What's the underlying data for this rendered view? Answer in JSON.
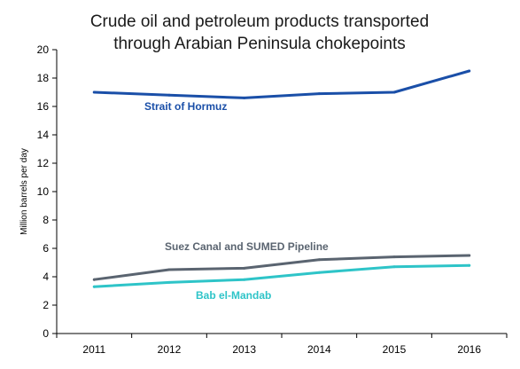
{
  "chart_data": {
    "type": "line",
    "title_lines": [
      "Crude oil and petroleum products transported",
      "through Arabian Peninsula chokepoints"
    ],
    "xlabel": "",
    "ylabel": "Million barrels per day",
    "x": [
      "2011",
      "2012",
      "2013",
      "2014",
      "2015",
      "2016"
    ],
    "ylim": [
      0,
      20
    ],
    "yticks": [
      0,
      2,
      4,
      6,
      8,
      10,
      12,
      14,
      16,
      18,
      20
    ],
    "grid": false,
    "legend": "inline labels",
    "series": [
      {
        "name": "Strait of Hormuz",
        "values": [
          17.0,
          16.8,
          16.6,
          16.9,
          17.0,
          18.5
        ],
        "color": "#1a4fa8"
      },
      {
        "name": "Suez Canal and SUMED Pipeline",
        "values": [
          3.8,
          4.5,
          4.6,
          5.2,
          5.4,
          5.5
        ],
        "color": "#5a6470"
      },
      {
        "name": "Bab el-Mandab",
        "values": [
          3.3,
          3.6,
          3.8,
          4.3,
          4.7,
          4.8
        ],
        "color": "#2ec4c8"
      }
    ]
  }
}
